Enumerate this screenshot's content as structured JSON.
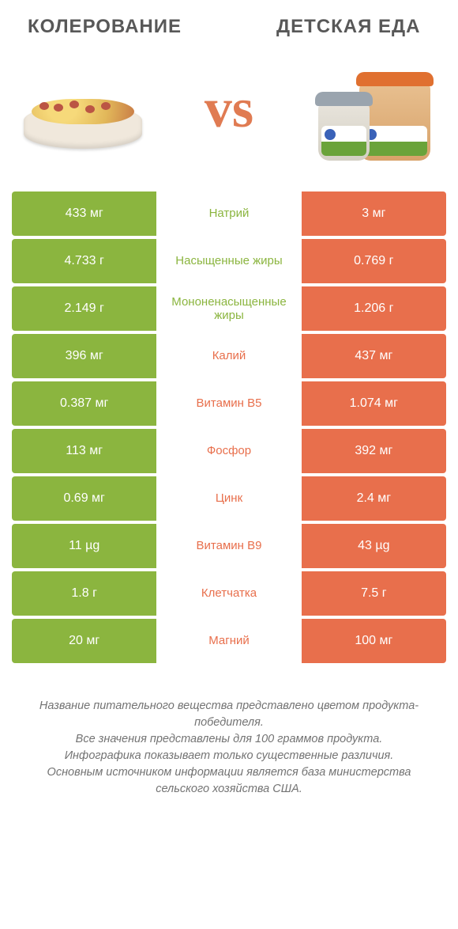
{
  "header": {
    "left_title": "КОЛЕРОВАНИЕ",
    "right_title": "ДЕТСКАЯ ЕДА",
    "vs": "vs"
  },
  "colors": {
    "green": "#8bb53f",
    "orange": "#e86f4c",
    "text_gray": "#585858",
    "footnote_gray": "#737373",
    "background": "#ffffff"
  },
  "table": {
    "rows": [
      {
        "left": "433 мг",
        "nutrient": "Натрий",
        "right": "3 мг",
        "winner": "left"
      },
      {
        "left": "4.733 г",
        "nutrient": "Насыщенные жиры",
        "right": "0.769 г",
        "winner": "left"
      },
      {
        "left": "2.149 г",
        "nutrient": "Мононенасыщенные жиры",
        "right": "1.206 г",
        "winner": "left"
      },
      {
        "left": "396 мг",
        "nutrient": "Калий",
        "right": "437 мг",
        "winner": "right"
      },
      {
        "left": "0.387 мг",
        "nutrient": "Витамин B5",
        "right": "1.074 мг",
        "winner": "right"
      },
      {
        "left": "113 мг",
        "nutrient": "Фосфор",
        "right": "392 мг",
        "winner": "right"
      },
      {
        "left": "0.69 мг",
        "nutrient": "Цинк",
        "right": "2.4 мг",
        "winner": "right"
      },
      {
        "left": "11 µg",
        "nutrient": "Витамин B9",
        "right": "43 µg",
        "winner": "right"
      },
      {
        "left": "1.8 г",
        "nutrient": "Клетчатка",
        "right": "7.5 г",
        "winner": "right"
      },
      {
        "left": "20 мг",
        "nutrient": "Магний",
        "right": "100 мг",
        "winner": "right"
      }
    ]
  },
  "footnote": {
    "line1": "Название питательного вещества представлено цветом продукта-победителя.",
    "line2": "Все значения представлены для 100 граммов продукта.",
    "line3": "Инфографика показывает только существенные различия.",
    "line4": "Основным источником информации является база министерства сельского хозяйства США."
  }
}
